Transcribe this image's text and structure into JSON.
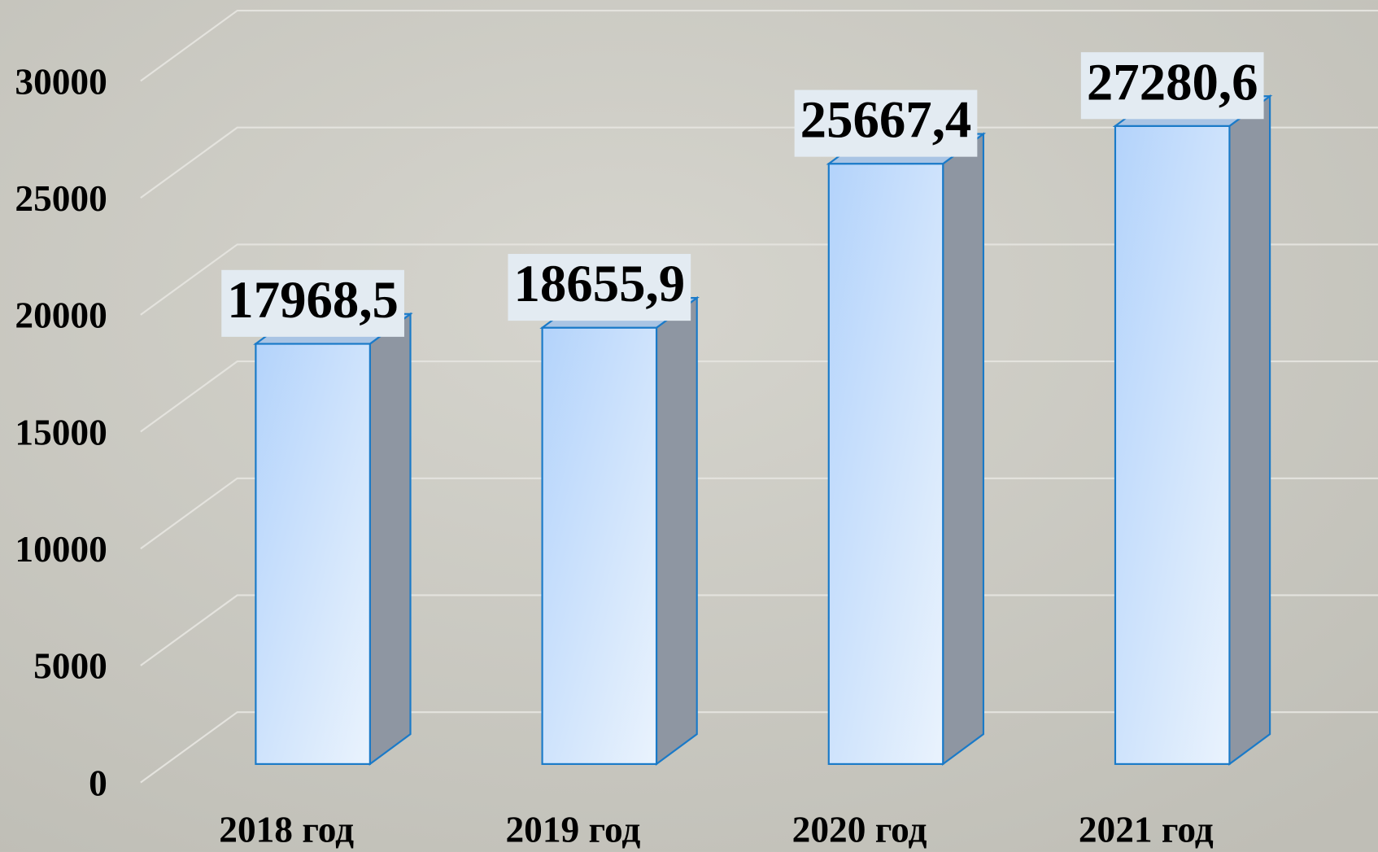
{
  "chart_data": {
    "type": "bar3d",
    "categories": [
      "2018 год",
      "2019 год",
      "2020 год",
      "2021 год"
    ],
    "values": [
      17968.5,
      18655.9,
      25667.4,
      27280.6
    ],
    "value_labels": [
      "17968,5",
      "18655,9",
      "25667,4",
      "27280,6"
    ],
    "color": "#cfe2fb",
    "ylim": [
      0,
      30000
    ],
    "yticks": [
      0,
      5000,
      10000,
      15000,
      20000,
      25000,
      30000
    ],
    "grid": true
  }
}
